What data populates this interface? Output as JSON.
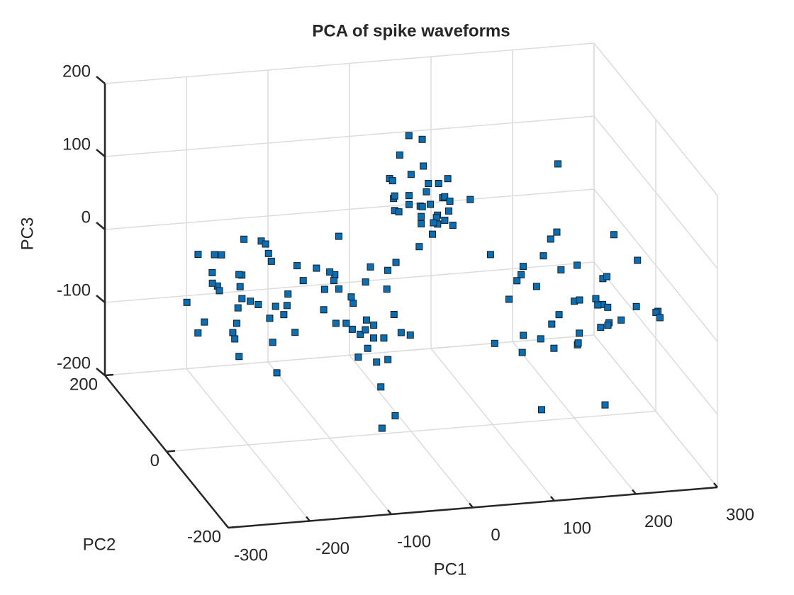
{
  "chart_data": {
    "type": "scatter3d",
    "title": "PCA of spike waveforms",
    "xlabel": "PC1",
    "ylabel": "PC2",
    "zlabel": "PC3",
    "xlim": [
      -300,
      300
    ],
    "ylim": [
      -200,
      200
    ],
    "zlim": [
      -200,
      200
    ],
    "xticks": [
      -300,
      -200,
      -100,
      0,
      100,
      200,
      300
    ],
    "yticks": [
      -200,
      0,
      200
    ],
    "zticks": [
      -200,
      -100,
      0,
      100,
      200
    ],
    "grid": true,
    "series": [
      {
        "color": "#0072bd",
        "x": [
          -230,
          -185,
          -210,
          -160,
          -250,
          -195,
          -175,
          -220,
          -205,
          -140,
          -265,
          -190,
          -215,
          -170,
          -235,
          -200,
          -155,
          -245,
          -180,
          -225,
          -210,
          -165,
          -195,
          -240,
          -185,
          -150,
          -220,
          -205,
          -175,
          -260,
          -190,
          -230,
          -145,
          -200,
          -215,
          -100,
          -60,
          -120,
          -40,
          -90,
          -70,
          -130,
          -50,
          -80,
          -110,
          -30,
          -95,
          -65,
          -140,
          -55,
          -85,
          -115,
          -45,
          -75,
          -105,
          -35,
          -90,
          -60,
          -125,
          -70,
          -100,
          -50,
          -80,
          -20,
          -115,
          -65,
          -95,
          -40,
          -85,
          -110,
          30,
          50,
          10,
          60,
          20,
          40,
          0,
          70,
          35,
          45,
          15,
          55,
          25,
          65,
          40,
          5,
          50,
          30,
          20,
          60,
          45,
          35,
          10,
          55,
          25,
          40,
          65,
          15,
          50,
          30,
          0,
          45,
          80,
          35,
          20,
          200,
          150,
          250,
          120,
          280,
          180,
          220,
          160,
          240,
          130,
          270,
          190,
          210,
          170,
          260,
          140,
          230,
          200,
          110,
          290,
          180,
          250,
          160,
          220,
          140,
          270,
          200,
          230,
          170,
          190,
          260,
          150,
          210,
          240,
          180,
          120,
          280,
          220,
          160,
          200,
          180,
          160
        ],
        "y": [
          20,
          -40,
          60,
          -10,
          30,
          50,
          -60,
          -20,
          80,
          0,
          -30,
          40,
          10,
          -50,
          70,
          -70,
          30,
          -10,
          20,
          -40,
          90,
          50,
          -80,
          10,
          60,
          -20,
          -60,
          30,
          0,
          40,
          -30,
          -50,
          70,
          20,
          -10,
          -30,
          -70,
          -10,
          -50,
          -90,
          -20,
          -60,
          0,
          -40,
          -80,
          -30,
          -110,
          -50,
          -20,
          -70,
          10,
          -60,
          -40,
          -100,
          -30,
          -60,
          -50,
          -10,
          -80,
          -40,
          -70,
          -20,
          -90,
          -50,
          -40,
          -120,
          -60,
          -30,
          -130,
          -10,
          50,
          30,
          80,
          40,
          60,
          20,
          70,
          50,
          100,
          10,
          40,
          60,
          30,
          90,
          50,
          20,
          70,
          40,
          110,
          50,
          30,
          60,
          80,
          20,
          40,
          70,
          50,
          100,
          60,
          30,
          40,
          50,
          20,
          60,
          90,
          0,
          40,
          -20,
          60,
          -60,
          20,
          -40,
          80,
          0,
          -20,
          -80,
          50,
          10,
          -30,
          30,
          -50,
          70,
          -70,
          20,
          -40,
          -10,
          40,
          60,
          -60,
          10,
          -20,
          100,
          -30,
          -90,
          30,
          50,
          -10,
          -50,
          20,
          -70,
          0,
          10,
          40,
          -40,
          -100,
          0,
          0
        ],
        "z": [
          10,
          -40,
          30,
          -20,
          50,
          -60,
          20,
          0,
          -30,
          40,
          -10,
          60,
          -50,
          30,
          -80,
          10,
          -30,
          70,
          -20,
          40,
          -10,
          50,
          -60,
          20,
          0,
          -40,
          30,
          -70,
          60,
          -20,
          90,
          -50,
          10,
          -10,
          40,
          20,
          -30,
          40,
          -10,
          60,
          -50,
          10,
          30,
          -70,
          0,
          50,
          -20,
          -40,
          30,
          -60,
          70,
          -10,
          20,
          -80,
          40,
          -30,
          10,
          -50,
          60,
          -20,
          30,
          -90,
          0,
          -40,
          50,
          -110,
          -20,
          40,
          -120,
          10,
          80,
          100,
          60,
          120,
          90,
          70,
          110,
          50,
          150,
          80,
          130,
          60,
          90,
          40,
          110,
          100,
          70,
          140,
          60,
          90,
          120,
          50,
          80,
          100,
          30,
          160,
          70,
          90,
          50,
          110,
          80,
          40,
          100,
          60,
          130,
          -40,
          -20,
          -60,
          0,
          -30,
          -80,
          10,
          -50,
          -10,
          -70,
          -20,
          20,
          -90,
          -40,
          30,
          -60,
          -30,
          0,
          -100,
          -50,
          10,
          -70,
          -20,
          -40,
          -110,
          20,
          -30,
          -60,
          -50,
          40,
          -80,
          -10,
          -20,
          -90,
          0,
          -30,
          -60,
          -120,
          -80,
          -130,
          150,
          -185
        ]
      }
    ]
  }
}
